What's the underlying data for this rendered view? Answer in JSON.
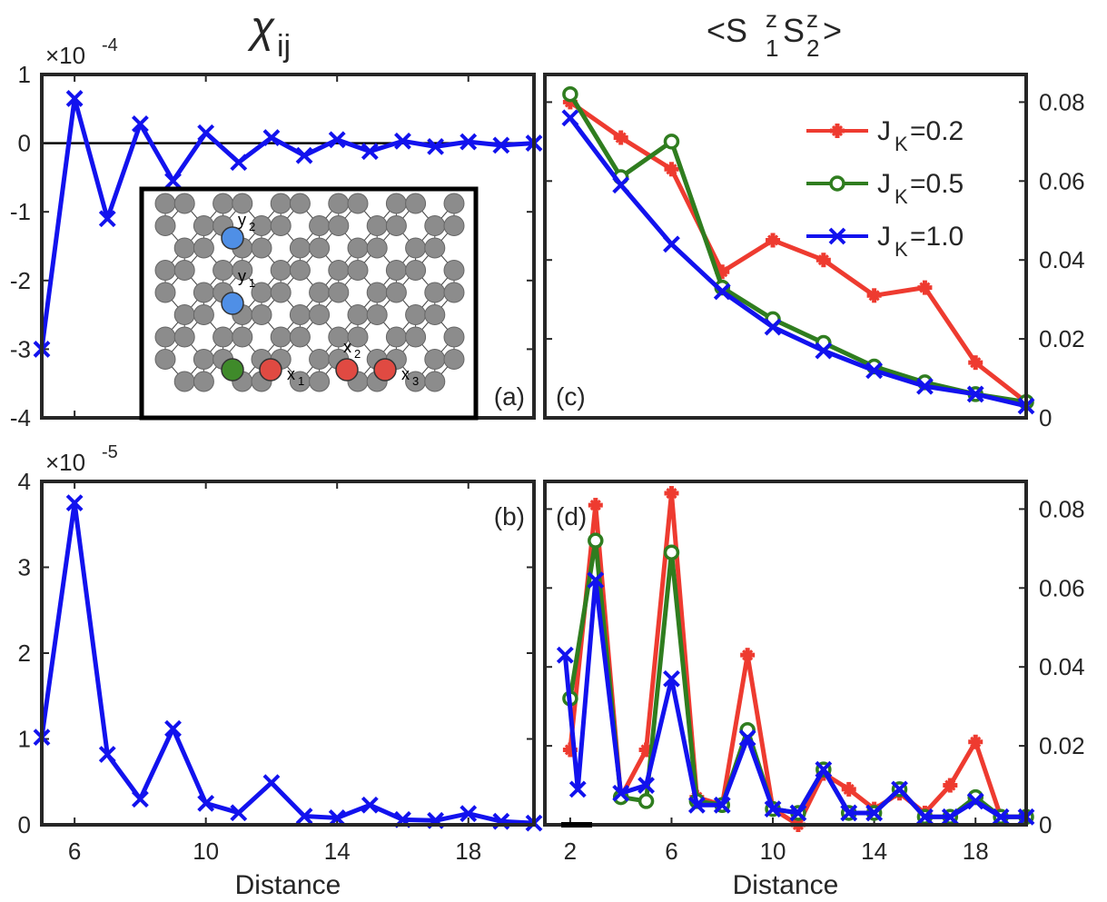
{
  "titles": {
    "left": "χ",
    "left_sub": "ij",
    "right": "<S",
    "right_sup1": "z",
    "right_sub1": "1",
    "right_sup2": "z",
    "right_sub2": "2",
    "right_end": ">"
  },
  "xlabel": "Distance",
  "colors": {
    "red": "#ee3b30",
    "green": "#2f7d1f",
    "blue": "#1212ee",
    "black": "#000000"
  },
  "legend": [
    {
      "name": "J",
      "sub": "K",
      "value": "=0.2",
      "color": "#ee3b30",
      "marker": "plus"
    },
    {
      "name": "J",
      "sub": "K",
      "value": "=0.5",
      "color": "#2f7d1f",
      "marker": "circle"
    },
    {
      "name": "J",
      "sub": "K",
      "value": "=1.0",
      "color": "#1212ee",
      "marker": "x"
    }
  ],
  "inset_labels": [
    {
      "base": "y",
      "sub": "2"
    },
    {
      "base": "y",
      "sub": "1"
    },
    {
      "base": "x",
      "sub": "1"
    },
    {
      "base": "x",
      "sub": "2"
    },
    {
      "base": "x",
      "sub": "3"
    }
  ],
  "chart_data": [
    {
      "id": "a",
      "type": "line",
      "panel_label": "(a)",
      "multiplier": "×10",
      "multiplier_exp": "-4",
      "xlim": [
        5,
        20
      ],
      "ylim": [
        -4,
        1
      ],
      "xticks": [
        6,
        10,
        14,
        18
      ],
      "yticks": [
        -4,
        -3,
        -2,
        -1,
        0,
        1
      ],
      "ytick_labels": [
        "-4",
        "-3",
        "-2",
        "-1",
        "0",
        "1"
      ],
      "zero_line": true,
      "series": [
        {
          "name": "chi",
          "color": "#1212ee",
          "marker": "x",
          "x": [
            5,
            6,
            7,
            8,
            9,
            10,
            11,
            12,
            13,
            14,
            15,
            16,
            17,
            18,
            19,
            20
          ],
          "y": [
            -3.0,
            0.65,
            -1.1,
            0.28,
            -0.55,
            0.15,
            -0.28,
            0.08,
            -0.18,
            0.05,
            -0.12,
            0.03,
            -0.05,
            0.02,
            -0.03,
            0.0
          ]
        }
      ]
    },
    {
      "id": "b",
      "type": "line",
      "panel_label": "(b)",
      "multiplier": "×10",
      "multiplier_exp": "-5",
      "xlim": [
        5,
        20
      ],
      "ylim": [
        0,
        4
      ],
      "xticks": [
        6,
        10,
        14,
        18
      ],
      "yticks": [
        0,
        1,
        2,
        3,
        4
      ],
      "ytick_labels": [
        "0",
        "1",
        "2",
        "3",
        "4"
      ],
      "series": [
        {
          "name": "chi",
          "color": "#1212ee",
          "marker": "x",
          "x": [
            5,
            6,
            7,
            8,
            9,
            10,
            11,
            12,
            13,
            14,
            15,
            16,
            17,
            18,
            19,
            20
          ],
          "y": [
            1.02,
            3.75,
            0.82,
            0.3,
            1.12,
            0.25,
            0.14,
            0.49,
            0.1,
            0.08,
            0.23,
            0.06,
            0.05,
            0.13,
            0.04,
            0.02
          ]
        }
      ]
    },
    {
      "id": "c",
      "type": "line",
      "panel_label": "(c)",
      "xlim": [
        1,
        20
      ],
      "ylim": [
        0,
        0.087
      ],
      "xticks": [],
      "yticks": [
        0,
        0.02,
        0.04,
        0.06,
        0.08
      ],
      "ytick_labels": [
        "0",
        "0.02",
        "0.04",
        "0.06",
        "0.08"
      ],
      "series": [
        {
          "name": "J_K=0.2",
          "color": "#ee3b30",
          "marker": "plus",
          "x": [
            2,
            4,
            6,
            8,
            10,
            12,
            14,
            16,
            18,
            20
          ],
          "y": [
            0.08,
            0.071,
            0.063,
            0.037,
            0.045,
            0.04,
            0.031,
            0.033,
            0.014,
            0.004
          ]
        },
        {
          "name": "J_K=0.5",
          "color": "#2f7d1f",
          "marker": "circle",
          "x": [
            2,
            4,
            6,
            8,
            10,
            12,
            14,
            16,
            18,
            20
          ],
          "y": [
            0.082,
            0.061,
            0.07,
            0.033,
            0.025,
            0.019,
            0.013,
            0.009,
            0.006,
            0.004
          ]
        },
        {
          "name": "J_K=1.0",
          "color": "#1212ee",
          "marker": "x",
          "x": [
            2,
            4,
            6,
            8,
            10,
            12,
            14,
            16,
            18,
            20
          ],
          "y": [
            0.076,
            0.059,
            0.044,
            0.032,
            0.023,
            0.017,
            0.012,
            0.008,
            0.006,
            0.003
          ]
        }
      ]
    },
    {
      "id": "d",
      "type": "line",
      "panel_label": "(d)",
      "xlim": [
        1,
        20
      ],
      "ylim": [
        0,
        0.087
      ],
      "xticks": [
        2,
        6,
        10,
        14,
        18
      ],
      "yticks": [
        0,
        0.02,
        0.04,
        0.06,
        0.08
      ],
      "ytick_labels": [
        "0",
        "0.02",
        "0.04",
        "0.06",
        "0.08"
      ],
      "series": [
        {
          "name": "J_K=0.2",
          "color": "#ee3b30",
          "marker": "plus",
          "x": [
            2,
            3,
            4,
            5,
            6,
            7,
            8,
            9,
            10,
            11,
            12,
            13,
            14,
            15,
            16,
            17,
            18,
            19,
            20
          ],
          "y": [
            0.019,
            0.081,
            0.007,
            0.019,
            0.084,
            0.007,
            0.005,
            0.043,
            0.004,
            0.0,
            0.013,
            0.009,
            0.004,
            0.008,
            0.003,
            0.01,
            0.021,
            0.002,
            0.002
          ]
        },
        {
          "name": "J_K=0.5",
          "color": "#2f7d1f",
          "marker": "circle",
          "x": [
            2,
            3,
            4,
            5,
            6,
            7,
            8,
            9,
            10,
            11,
            12,
            13,
            14,
            15,
            16,
            17,
            18,
            19,
            20
          ],
          "y": [
            0.032,
            0.072,
            0.007,
            0.006,
            0.069,
            0.006,
            0.005,
            0.024,
            0.004,
            0.003,
            0.014,
            0.003,
            0.003,
            0.009,
            0.002,
            0.002,
            0.007,
            0.002,
            0.002
          ]
        },
        {
          "name": "J_K=1.0",
          "color": "#1212ee",
          "marker": "x",
          "x": [
            1.8,
            2.3,
            3,
            4,
            5,
            6,
            7,
            8,
            9,
            10,
            11,
            12,
            13,
            14,
            15,
            16,
            17,
            18,
            19,
            20
          ],
          "y": [
            0.043,
            0.009,
            0.062,
            0.008,
            0.01,
            0.037,
            0.005,
            0.005,
            0.022,
            0.004,
            0.003,
            0.014,
            0.003,
            0.003,
            0.009,
            0.002,
            0.002,
            0.006,
            0.002,
            0.002
          ]
        }
      ]
    }
  ]
}
